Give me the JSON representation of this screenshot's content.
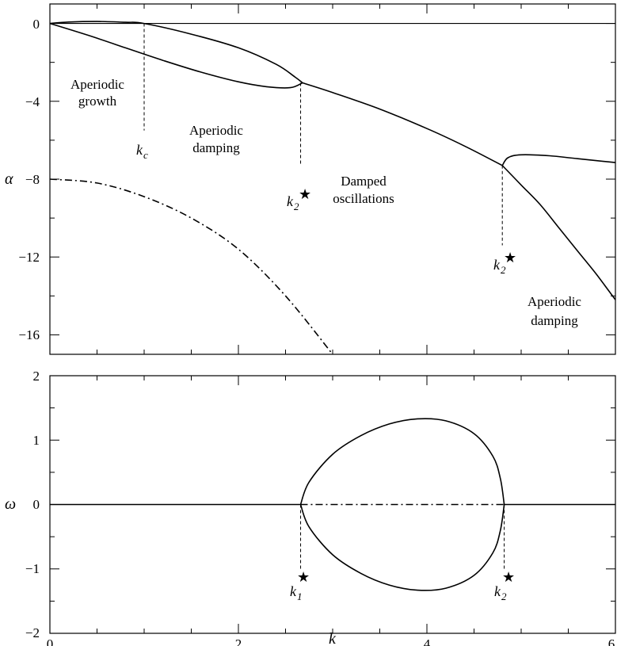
{
  "chart_data": [
    {
      "type": "line",
      "panel": "top",
      "ylabel": "α",
      "xlabel": "",
      "xlim": [
        0,
        6
      ],
      "ylim": [
        -17,
        1
      ],
      "xticks": [
        0,
        2,
        4,
        6
      ],
      "yticks": [
        0,
        -4,
        -8,
        -12,
        -16
      ],
      "ytick_labels": [
        "0",
        "−4",
        "−8",
        "−12",
        "−16"
      ],
      "grid": false,
      "series": [
        {
          "style": "solid",
          "points": [
            [
              0,
              0
            ],
            [
              0.2,
              0.07
            ],
            [
              0.5,
              0.1
            ],
            [
              0.8,
              0.06
            ],
            [
              1.0,
              0.0
            ],
            [
              1.5,
              -0.55
            ],
            [
              2.0,
              -1.25
            ],
            [
              2.4,
              -2.1
            ],
            [
              2.6,
              -2.75
            ],
            [
              2.68,
              -3.05
            ]
          ]
        },
        {
          "style": "solid",
          "points": [
            [
              0,
              0
            ],
            [
              0.4,
              -0.6
            ],
            [
              0.8,
              -1.25
            ],
            [
              1.2,
              -1.9
            ],
            [
              1.6,
              -2.5
            ],
            [
              2.0,
              -3.0
            ],
            [
              2.3,
              -3.25
            ],
            [
              2.55,
              -3.3
            ],
            [
              2.68,
              -3.05
            ]
          ]
        },
        {
          "style": "solid",
          "points": [
            [
              2.68,
              -3.05
            ],
            [
              3.0,
              -3.55
            ],
            [
              3.5,
              -4.4
            ],
            [
              4.0,
              -5.4
            ],
            [
              4.4,
              -6.3
            ],
            [
              4.8,
              -7.3
            ]
          ]
        },
        {
          "style": "solid",
          "points": [
            [
              4.8,
              -7.3
            ],
            [
              4.86,
              -6.9
            ],
            [
              5.0,
              -6.75
            ],
            [
              5.3,
              -6.8
            ],
            [
              5.6,
              -6.95
            ],
            [
              6.0,
              -7.15
            ]
          ]
        },
        {
          "style": "solid",
          "points": [
            [
              4.8,
              -7.3
            ],
            [
              5.0,
              -8.3
            ],
            [
              5.2,
              -9.3
            ],
            [
              5.4,
              -10.5
            ],
            [
              5.6,
              -11.7
            ],
            [
              5.8,
              -12.9
            ],
            [
              6.0,
              -14.2
            ]
          ]
        },
        {
          "style": "dashdot",
          "points": [
            [
              0,
              -8.0
            ],
            [
              0.5,
              -8.2
            ],
            [
              1.0,
              -8.9
            ],
            [
              1.5,
              -10.0
            ],
            [
              2.0,
              -11.6
            ],
            [
              2.5,
              -14.0
            ],
            [
              3.0,
              -17.0
            ]
          ]
        }
      ],
      "markers": [
        {
          "x": 1.0,
          "y_from": 0.0,
          "y_to": -5.5
        },
        {
          "x": 2.66,
          "y_from": -3.05,
          "y_to": -7.3
        },
        {
          "x": 4.8,
          "y_from": -7.3,
          "y_to": -11.4
        }
      ],
      "annotations": {
        "kc": "k",
        "kc_sub": "c",
        "k2_first": "k",
        "k2_first_sub": "2",
        "k2_second": "k",
        "k2_second_sub": "2",
        "star": "★",
        "aperiodic_growth_line1": "Aperiodic",
        "aperiodic_growth_line2": "growth",
        "aperiodic_damping_line1": "Aperiodic",
        "aperiodic_damping_line2": "damping",
        "damped_osc_line1": "Damped",
        "damped_osc_line2": "oscillations",
        "aperiodic_damping2_line1": "Aperiodic",
        "aperiodic_damping2_line2": "damping"
      }
    },
    {
      "type": "line",
      "panel": "bottom",
      "ylabel": "ω",
      "xlabel": "k",
      "xlim": [
        0,
        6
      ],
      "ylim": [
        -2,
        2
      ],
      "xticks": [
        0,
        2,
        4,
        6
      ],
      "xtick_labels": [
        "0",
        "2",
        "4",
        "6"
      ],
      "yticks": [
        2,
        1,
        0,
        -1,
        -2
      ],
      "ytick_labels": [
        "2",
        "1",
        "0",
        "−1",
        "−2"
      ],
      "grid": false,
      "series": [
        {
          "style": "solid",
          "points": [
            [
              0,
              0
            ],
            [
              2.66,
              0
            ]
          ]
        },
        {
          "style": "solid",
          "points": [
            [
              4.82,
              0
            ],
            [
              6,
              0
            ]
          ]
        },
        {
          "style": "dashdot",
          "points": [
            [
              2.66,
              0
            ],
            [
              4.82,
              0
            ]
          ]
        },
        {
          "style": "solid",
          "points": [
            [
              2.66,
              0
            ],
            [
              2.75,
              0.35
            ],
            [
              3.0,
              0.78
            ],
            [
              3.3,
              1.07
            ],
            [
              3.6,
              1.25
            ],
            [
              3.9,
              1.33
            ],
            [
              4.2,
              1.3
            ],
            [
              4.5,
              1.1
            ],
            [
              4.7,
              0.75
            ],
            [
              4.78,
              0.4
            ],
            [
              4.82,
              0
            ]
          ]
        },
        {
          "style": "solid",
          "points": [
            [
              2.66,
              0
            ],
            [
              2.75,
              -0.35
            ],
            [
              3.0,
              -0.78
            ],
            [
              3.3,
              -1.07
            ],
            [
              3.6,
              -1.25
            ],
            [
              3.9,
              -1.33
            ],
            [
              4.2,
              -1.3
            ],
            [
              4.5,
              -1.1
            ],
            [
              4.7,
              -0.75
            ],
            [
              4.78,
              -0.4
            ],
            [
              4.82,
              0
            ]
          ]
        }
      ],
      "markers": [
        {
          "x": 2.66,
          "y_from": 0,
          "y_to": -1.0
        },
        {
          "x": 4.82,
          "y_from": 0,
          "y_to": -1.0
        }
      ],
      "annotations": {
        "k1": "k",
        "k1_sub": "1",
        "k2": "k",
        "k2_sub": "2",
        "star": "★"
      }
    }
  ]
}
